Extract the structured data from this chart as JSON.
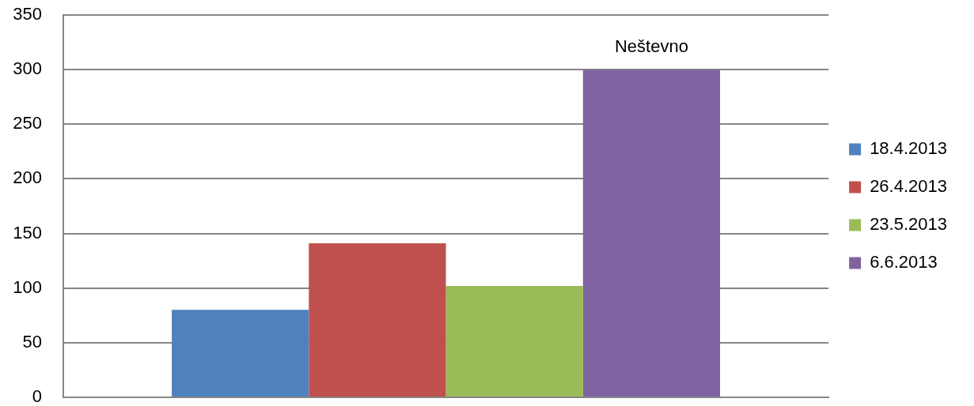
{
  "chart_data": {
    "type": "bar",
    "categories": [
      null
    ],
    "series": [
      {
        "name": "18.4.2013",
        "color": "#4f81bd",
        "values": [
          80
        ]
      },
      {
        "name": "26.4.2013",
        "color": "#c0504d",
        "values": [
          141
        ]
      },
      {
        "name": "23.5.2013",
        "color": "#9bbb59",
        "values": [
          102
        ]
      },
      {
        "name": "6.6.2013",
        "color": "#8064a2",
        "values": [
          300
        ],
        "value_labels": [
          "Neštevno"
        ]
      }
    ],
    "ylim": [
      0,
      350
    ],
    "yticks": [
      0,
      50,
      100,
      150,
      200,
      250,
      300,
      350
    ],
    "grid": "y",
    "legend": "right",
    "tick_labels": "y"
  }
}
